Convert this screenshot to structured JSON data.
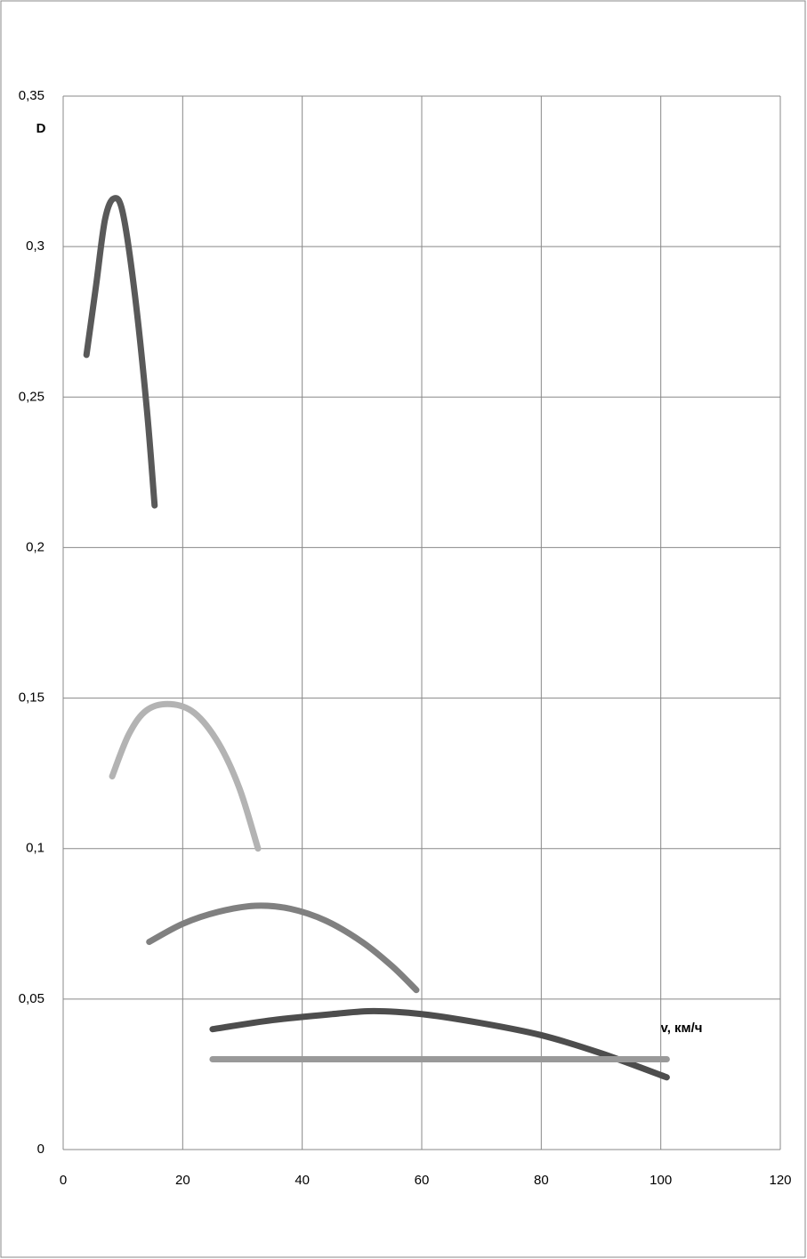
{
  "chart_data": {
    "type": "line",
    "y_label": "D",
    "x_label": "v, км/ч",
    "xlim": [
      0,
      120
    ],
    "xticks": [
      0,
      20,
      40,
      60,
      80,
      100,
      120
    ],
    "ylim": [
      0,
      0.35
    ],
    "yticks": [
      0,
      {
        "value": 0.05,
        "label": "0,05"
      },
      {
        "value": 0.1,
        "label": "0,1"
      },
      {
        "value": 0.15,
        "label": "0,15"
      },
      {
        "value": 0.2,
        "label": "0,2"
      },
      {
        "value": 0.25,
        "label": "0,25"
      },
      {
        "value": 0.3,
        "label": "0,3"
      },
      {
        "value": 0.35,
        "label": "0,35"
      }
    ],
    "grid": true,
    "series": [
      {
        "color": "#595959",
        "x": [
          3.9,
          5.5,
          7,
          8.5,
          10,
          12,
          14,
          15.3
        ],
        "values": [
          0.264,
          0.287,
          0.309,
          0.316,
          0.311,
          0.284,
          0.246,
          0.214
        ]
      },
      {
        "color": "#b3b3b3",
        "x": [
          8.2,
          11,
          14,
          18,
          22,
          26,
          29.5,
          32.6
        ],
        "values": [
          0.124,
          0.138,
          0.146,
          0.148,
          0.145,
          0.135,
          0.12,
          0.1
        ]
      },
      {
        "color": "#808080",
        "x": [
          14.4,
          20,
          26,
          32.2,
          38,
          44,
          50,
          55,
          59.1
        ],
        "values": [
          0.069,
          0.075,
          0.079,
          0.081,
          0.08,
          0.076,
          0.069,
          0.061,
          0.053
        ]
      },
      {
        "color": "#4d4d4d",
        "x": [
          25,
          35,
          45,
          52,
          60,
          70,
          80,
          90,
          101
        ],
        "values": [
          0.04,
          0.043,
          0.045,
          0.046,
          0.045,
          0.042,
          0.038,
          0.032,
          0.024
        ]
      },
      {
        "color": "#999999",
        "x": [
          25,
          101
        ],
        "values": [
          0.03,
          0.03
        ]
      }
    ]
  }
}
